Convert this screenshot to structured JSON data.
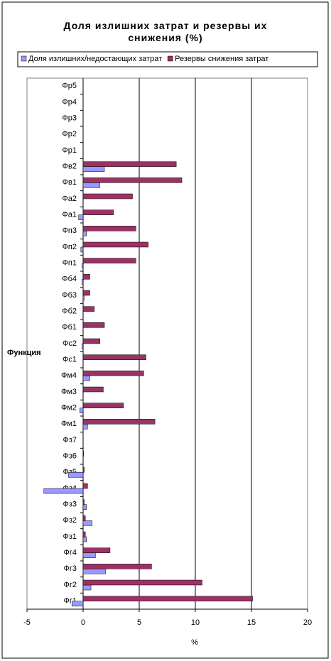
{
  "chart_data": {
    "type": "bar",
    "orientation": "horizontal",
    "title": "Доля излишних затрат и резервы их снижения (%)",
    "x_label": "%",
    "y_label": "Функция",
    "categories": [
      "Фг1",
      "Фг2",
      "Фг3",
      "Фг4",
      "Фз1",
      "Фз2",
      "Фз3",
      "Фз4",
      "Фз5",
      "Фз6",
      "Фз7",
      "Фм1",
      "Фм2",
      "Фм3",
      "Фм4",
      "Фс1",
      "Фс2",
      "Фб1",
      "Фб2",
      "Фб3",
      "Фб4",
      "Фп1",
      "Фп2",
      "Фп3",
      "Фа1",
      "Фа2",
      "Фв1",
      "Фв2",
      "Фр1",
      "Фр2",
      "Фр3",
      "Фр4",
      "Фр5"
    ],
    "series": [
      {
        "name": "Доля излишних/недостающих затрат",
        "color": "#9999ff",
        "values": [
          -1.0,
          0.7,
          2.0,
          1.1,
          0.3,
          0.8,
          0.3,
          -3.5,
          -1.3,
          0,
          0,
          0.4,
          -0.3,
          0,
          0.6,
          0,
          -0.1,
          0,
          0,
          0.1,
          -0.1,
          -0.1,
          -0.2,
          0.3,
          -0.4,
          0,
          1.5,
          1.9,
          0,
          0,
          0,
          0,
          0
        ]
      },
      {
        "name": "Резервы снижения затрат",
        "color": "#993366",
        "values": [
          15.1,
          10.6,
          6.1,
          2.4,
          0.2,
          0.2,
          0.1,
          0.4,
          0.1,
          0.05,
          0,
          6.4,
          3.6,
          1.8,
          5.4,
          5.6,
          1.5,
          1.9,
          1.0,
          0.6,
          0.6,
          4.7,
          5.8,
          4.7,
          2.7,
          4.4,
          8.8,
          8.3,
          0,
          0,
          0,
          0,
          0
        ]
      }
    ],
    "xlim": [
      -5,
      20
    ],
    "xticks": [
      -5,
      0,
      5,
      10,
      15,
      20
    ],
    "grid": true,
    "legend": "top"
  }
}
